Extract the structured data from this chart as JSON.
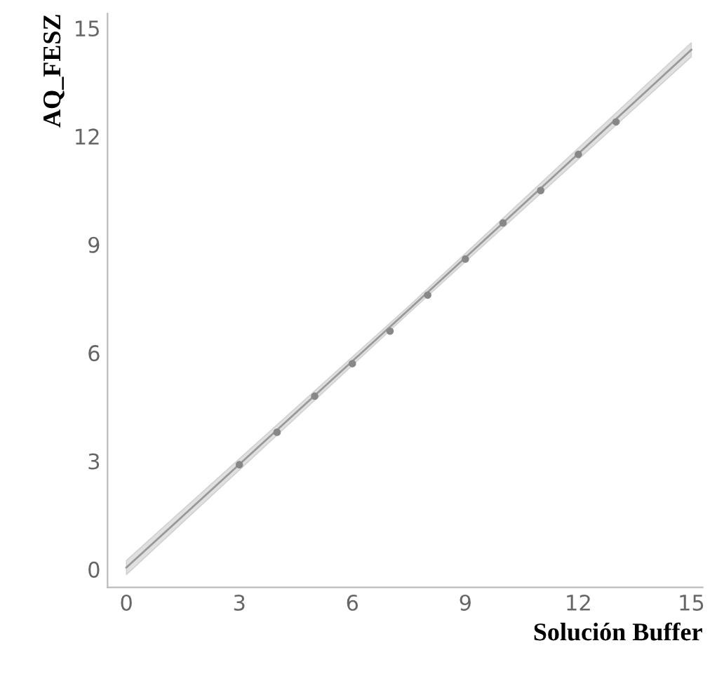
{
  "chart_data": {
    "type": "scatter",
    "xlabel": "Solución Buffer",
    "ylabel": "AQ_FESZ",
    "xlim": [
      -0.5,
      15.3
    ],
    "ylim": [
      -0.5,
      15.4
    ],
    "xticks": [
      0,
      3,
      6,
      9,
      12,
      15
    ],
    "yticks": [
      0,
      3,
      6,
      9,
      12,
      15
    ],
    "grid": false,
    "series": [
      {
        "marker": "circle",
        "color": "#888888",
        "x": [
          3,
          4,
          5,
          6,
          7,
          8,
          9,
          10,
          11,
          12,
          13
        ],
        "values": [
          2.9,
          3.8,
          4.8,
          5.7,
          6.6,
          7.6,
          8.6,
          9.6,
          10.5,
          11.5,
          12.4
        ]
      },
      {
        "type": "line",
        "color": "#999999",
        "x": [
          0,
          7.5,
          15
        ],
        "values": [
          0.05,
          7.2,
          14.4
        ],
        "lower": [
          -0.15,
          7.1,
          14.2
        ],
        "upper": [
          0.25,
          7.3,
          14.6
        ]
      }
    ]
  }
}
